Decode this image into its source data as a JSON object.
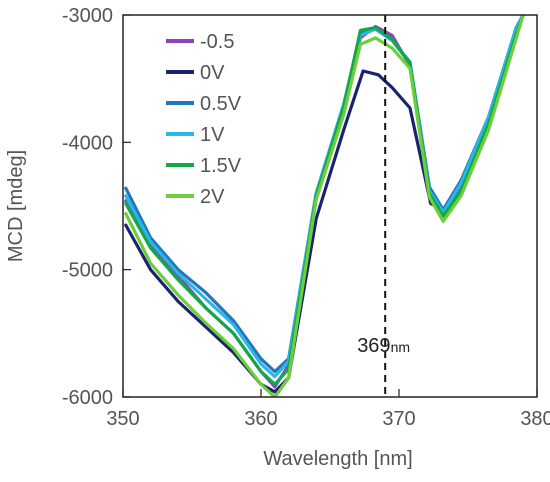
{
  "chart_data": {
    "type": "line",
    "xlabel": "Wavelength [nm]",
    "ylabel": "MCD [mdeg]",
    "xlim": [
      350,
      380
    ],
    "ylim": [
      -6000,
      -3000
    ],
    "xticks": [
      "350",
      "360",
      "370",
      "380"
    ],
    "yticks": [
      "-3000",
      "-4000",
      "-5000",
      "-6000"
    ],
    "legend_position": "top-left",
    "annotation": {
      "x": 369,
      "label_value": "369",
      "label_unit": "nm"
    },
    "series": [
      {
        "name": "-0.5",
        "color": "#8e44b8",
        "x": [
          350.2,
          352,
          354,
          356,
          358,
          360,
          361,
          362,
          364,
          366,
          367.2,
          368.3,
          369.5,
          370.8,
          372.2,
          373.2,
          374.5,
          376.5,
          378.5,
          379
        ],
        "y": [
          -4460,
          -4800,
          -5050,
          -5300,
          -5500,
          -5800,
          -5920,
          -5750,
          -4400,
          -3700,
          -3180,
          -3090,
          -3160,
          -3400,
          -4400,
          -4560,
          -4350,
          -3800,
          -3100,
          -3000
        ]
      },
      {
        "name": "0V",
        "color": "#1a2370",
        "x": [
          350.2,
          352,
          354,
          356,
          358,
          360,
          361,
          362,
          364,
          366,
          367.4,
          368.5,
          369.5,
          370.8,
          372.3,
          373.2,
          374.5,
          376.5,
          378.5,
          379
        ],
        "y": [
          -4650,
          -5000,
          -5250,
          -5450,
          -5650,
          -5900,
          -5960,
          -5850,
          -4600,
          -3900,
          -3440,
          -3470,
          -3570,
          -3730,
          -4480,
          -4530,
          -4300,
          -3800,
          -3100,
          -3000
        ]
      },
      {
        "name": "0.5V",
        "color": "#1f77c0",
        "x": [
          350.2,
          352,
          354,
          356,
          358,
          360,
          361,
          362,
          364,
          366,
          367.2,
          368.3,
          369.5,
          370.8,
          372.2,
          373.2,
          374.5,
          376.5,
          378.5,
          379
        ],
        "y": [
          -4360,
          -4750,
          -5000,
          -5180,
          -5400,
          -5700,
          -5800,
          -5700,
          -4400,
          -3700,
          -3140,
          -3110,
          -3200,
          -3370,
          -4350,
          -4530,
          -4300,
          -3800,
          -3100,
          -3000
        ]
      },
      {
        "name": "1V",
        "color": "#29b6e8",
        "x": [
          350.2,
          352,
          354,
          356,
          358,
          360,
          361,
          362,
          364,
          366,
          367.2,
          368.3,
          369.5,
          370.8,
          372.2,
          373.2,
          374.5,
          376.5,
          378.5,
          379
        ],
        "y": [
          -4420,
          -4780,
          -5030,
          -5230,
          -5430,
          -5740,
          -5840,
          -5720,
          -4400,
          -3700,
          -3160,
          -3110,
          -3200,
          -3380,
          -4380,
          -4550,
          -4320,
          -3800,
          -3100,
          -3000
        ]
      },
      {
        "name": "1.5V",
        "color": "#12a84a",
        "x": [
          350.2,
          352,
          354,
          356,
          358,
          360,
          361,
          362,
          364,
          366,
          367.2,
          368.3,
          369.5,
          370.8,
          372.2,
          373.2,
          374.5,
          376.5,
          378.5,
          379
        ],
        "y": [
          -4480,
          -4830,
          -5080,
          -5300,
          -5500,
          -5800,
          -5900,
          -5780,
          -4420,
          -3720,
          -3120,
          -3100,
          -3190,
          -3380,
          -4400,
          -4580,
          -4380,
          -3850,
          -3150,
          -3000
        ]
      },
      {
        "name": "2V",
        "color": "#6ccf3a",
        "x": [
          350.2,
          352,
          354,
          356,
          358,
          360,
          361,
          362,
          364,
          366,
          367.2,
          368.3,
          369.5,
          370.8,
          372.2,
          373.2,
          374.5,
          376.5,
          378.5,
          379
        ],
        "y": [
          -4560,
          -4950,
          -5200,
          -5420,
          -5620,
          -5900,
          -6000,
          -5850,
          -4450,
          -3780,
          -3230,
          -3180,
          -3260,
          -3420,
          -4430,
          -4620,
          -4420,
          -3900,
          -3180,
          -3000
        ]
      }
    ]
  }
}
